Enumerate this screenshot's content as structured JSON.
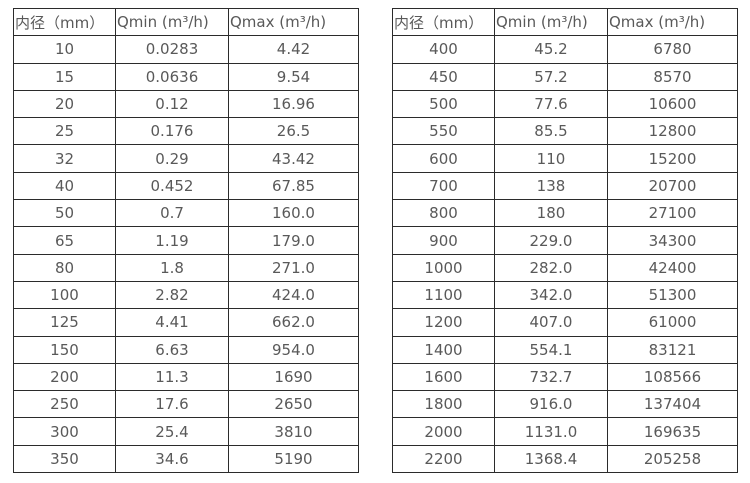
{
  "chart_data": {
    "type": "table",
    "title": "",
    "tables": [
      {
        "name": "flow-table-small-diameters",
        "headers": [
          "内径（mm）",
          "Qmin (m³/h)",
          "Qmax (m³/h)"
        ],
        "rows": [
          [
            "10",
            "0.0283",
            "4.42"
          ],
          [
            "15",
            "0.0636",
            "9.54"
          ],
          [
            "20",
            "0.12",
            "16.96"
          ],
          [
            "25",
            "0.176",
            "26.5"
          ],
          [
            "32",
            "0.29",
            "43.42"
          ],
          [
            "40",
            "0.452",
            "67.85"
          ],
          [
            "50",
            "0.7",
            "160.0"
          ],
          [
            "65",
            "1.19",
            "179.0"
          ],
          [
            "80",
            "1.8",
            "271.0"
          ],
          [
            "100",
            "2.82",
            "424.0"
          ],
          [
            "125",
            "4.41",
            "662.0"
          ],
          [
            "150",
            "6.63",
            "954.0"
          ],
          [
            "200",
            "11.3",
            "1690"
          ],
          [
            "250",
            "17.6",
            "2650"
          ],
          [
            "300",
            "25.4",
            "3810"
          ],
          [
            "350",
            "34.6",
            "5190"
          ]
        ]
      },
      {
        "name": "flow-table-large-diameters",
        "headers": [
          "内径（mm）",
          "Qmin (m³/h)",
          "Qmax (m³/h)"
        ],
        "rows": [
          [
            "400",
            "45.2",
            "6780"
          ],
          [
            "450",
            "57.2",
            "8570"
          ],
          [
            "500",
            "77.6",
            "10600"
          ],
          [
            "550",
            "85.5",
            "12800"
          ],
          [
            "600",
            "110",
            "15200"
          ],
          [
            "700",
            "138",
            "20700"
          ],
          [
            "800",
            "180",
            "27100"
          ],
          [
            "900",
            "229.0",
            "34300"
          ],
          [
            "1000",
            "282.0",
            "42400"
          ],
          [
            "1100",
            "342.0",
            "51300"
          ],
          [
            "1200",
            "407.0",
            "61000"
          ],
          [
            "1400",
            "554.1",
            "83121"
          ],
          [
            "1600",
            "732.7",
            "108566"
          ],
          [
            "1800",
            "916.0",
            "137404"
          ],
          [
            "2000",
            "1131.0",
            "169635"
          ],
          [
            "2200",
            "1368.4",
            "205258"
          ]
        ]
      }
    ]
  },
  "colors": {
    "background": "#ffffff",
    "border": "#2b2b2b",
    "text": "#595959"
  }
}
